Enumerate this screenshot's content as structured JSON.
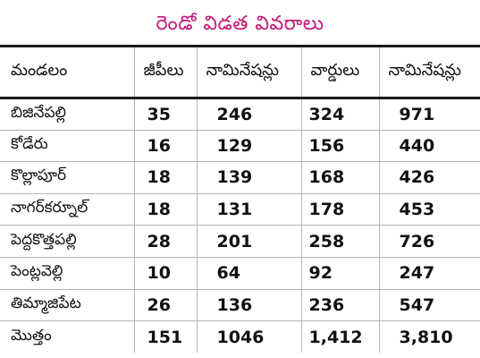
{
  "title": "రెండో విడత వివరాలు",
  "columns": [
    "మండలం",
    "జీపీలు",
    "నామినేషన్లు",
    "వార్డులు",
    "నామినేషన్లు"
  ],
  "rows": [
    [
      "బిజినేపల్లి",
      "35",
      "246",
      "324",
      "971"
    ],
    [
      "కోడేరు",
      "16",
      "129",
      "156",
      "440"
    ],
    [
      "కొల్లాపూర్",
      "18",
      "139",
      "168",
      "426"
    ],
    [
      "నాగర్‌కర్నూల్",
      "18",
      "131",
      "178",
      "453"
    ],
    [
      "పెద్దకొత్తపల్లి",
      "28",
      "201",
      "258",
      "726"
    ],
    [
      "పెంట్లవెల్లి",
      "10",
      "64",
      "92",
      "247"
    ],
    [
      "తిమ్మాజిపేట",
      "26",
      "136",
      "236",
      "547"
    ],
    [
      "మొత్తం",
      "151",
      "1046",
      "1,412",
      "3,810"
    ]
  ],
  "colors": {
    "title": "#c21877",
    "rule": "#1a1a1a",
    "grid": "#b5b5b5"
  }
}
